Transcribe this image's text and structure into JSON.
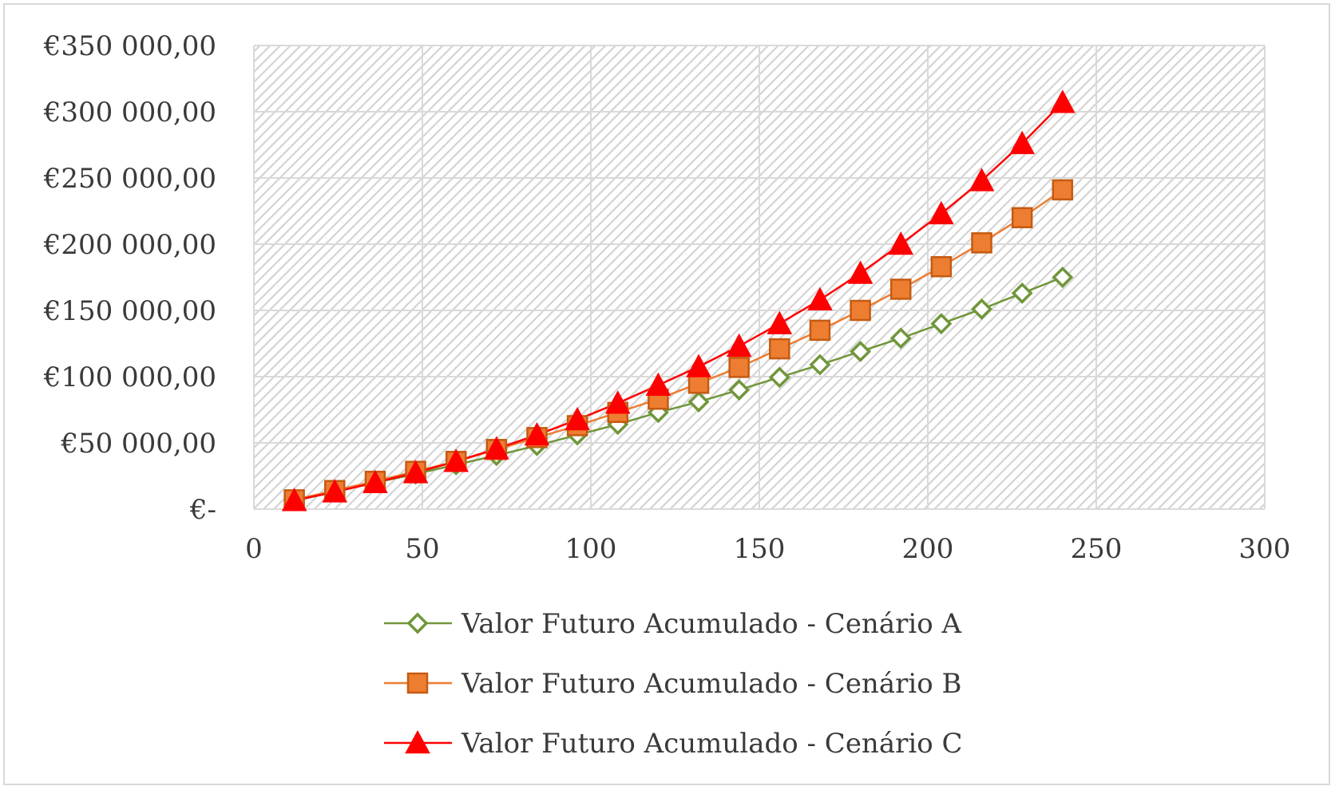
{
  "chart_data": {
    "type": "line",
    "title": "",
    "xlabel": "",
    "ylabel": "",
    "xlim": [
      0,
      300
    ],
    "ylim": [
      0,
      350000
    ],
    "x_ticks": [
      0,
      50,
      100,
      150,
      200,
      250,
      300
    ],
    "x_tick_labels": [
      "0",
      "50",
      "100",
      "150",
      "200",
      "250",
      "300"
    ],
    "y_ticks": [
      0,
      50000,
      100000,
      150000,
      200000,
      250000,
      300000,
      350000
    ],
    "y_tick_labels": [
      "€-",
      "€50 000,00",
      "€100 000,00",
      "€150 000,00",
      "€200 000,00",
      "€250 000,00",
      "€300 000,00",
      "€350 000,00"
    ],
    "grid": true,
    "plot_background": "hatched-light-gray",
    "legend_position": "bottom",
    "x": [
      12,
      24,
      36,
      48,
      60,
      72,
      84,
      96,
      108,
      120,
      132,
      144,
      156,
      168,
      180,
      192,
      204,
      216,
      228,
      240
    ],
    "series": [
      {
        "name": "Valor Futuro Acumulado - Cenário A",
        "color": "#70963a",
        "marker": "diamond-open",
        "values": [
          6300,
          13000,
          20000,
          26500,
          33500,
          40500,
          48000,
          56000,
          64000,
          73000,
          81000,
          90000,
          99500,
          109000,
          119000,
          129000,
          140000,
          151000,
          163000,
          175000
        ]
      },
      {
        "name": "Valor Futuro Acumulado - Cenário B",
        "color": "#ed7d31",
        "marker": "square",
        "values": [
          7000,
          14000,
          21000,
          28500,
          36000,
          45000,
          54000,
          63000,
          73000,
          83000,
          95000,
          107000,
          121000,
          135000,
          150000,
          166000,
          183000,
          201000,
          220000,
          241000
        ]
      },
      {
        "name": "Valor Futuro Acumulado - Cenário C",
        "color": "#ff0000",
        "marker": "triangle",
        "values": [
          6500,
          13000,
          20000,
          27500,
          36000,
          45500,
          56000,
          67500,
          80000,
          93500,
          107500,
          123000,
          140000,
          158000,
          178000,
          200000,
          223000,
          248000,
          276000,
          307000
        ]
      }
    ]
  }
}
